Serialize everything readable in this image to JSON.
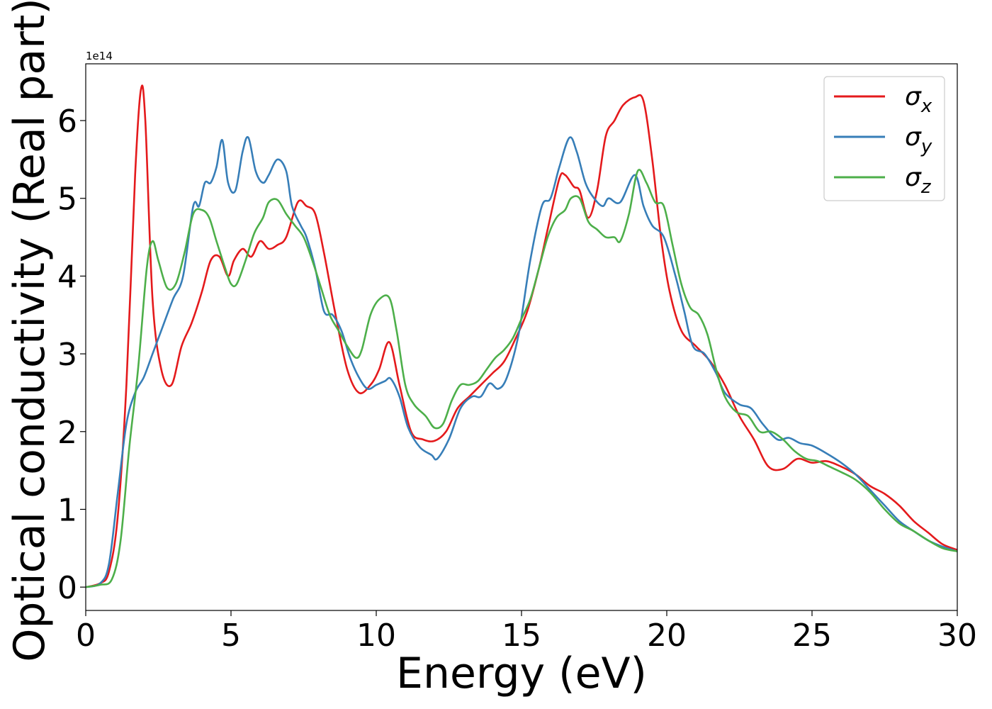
{
  "chart_data": {
    "type": "line",
    "title": "",
    "xlabel": "Energy (eV)",
    "ylabel": "Optical conductivity (Real part)",
    "y_offset_text": "1e14",
    "xlim": [
      0,
      30
    ],
    "ylim": [
      -0.3,
      6.73
    ],
    "xticks": [
      0,
      5,
      10,
      15,
      20,
      25,
      30
    ],
    "xtick_labels": [
      "0",
      "5",
      "10",
      "15",
      "20",
      "25",
      "30"
    ],
    "yticks": [
      0,
      1,
      2,
      3,
      4,
      5,
      6
    ],
    "ytick_labels": [
      "0",
      "1",
      "2",
      "3",
      "4",
      "5",
      "6"
    ],
    "grid": false,
    "legend": "upper right",
    "series": [
      {
        "name": "σx",
        "symbol": "σ",
        "subscript": "x",
        "color": "#e41a1c",
        "x": [
          0,
          0.5,
          0.8,
          1.1,
          1.4,
          1.7,
          1.9,
          2.05,
          2.3,
          2.6,
          2.95,
          3.3,
          3.65,
          4.0,
          4.3,
          4.6,
          4.9,
          5.1,
          5.4,
          5.7,
          6.0,
          6.3,
          6.6,
          6.9,
          7.3,
          7.6,
          7.9,
          8.2,
          8.6,
          9.0,
          9.4,
          9.8,
          10.1,
          10.45,
          10.8,
          11.2,
          11.6,
          12.0,
          12.4,
          12.8,
          13.2,
          13.6,
          14.0,
          14.4,
          14.8,
          15.2,
          15.6,
          15.9,
          16.3,
          16.5,
          16.8,
          17.0,
          17.3,
          17.6,
          17.9,
          18.2,
          18.5,
          18.9,
          19.2,
          19.5,
          19.8,
          20.1,
          20.5,
          21.0,
          21.5,
          22.0,
          22.5,
          23.0,
          23.5,
          24.0,
          24.5,
          25.0,
          25.5,
          26.0,
          26.5,
          27.0,
          27.5,
          28.0,
          28.5,
          29.0,
          29.5,
          30.0
        ],
        "y": [
          0.0,
          0.05,
          0.2,
          0.9,
          2.6,
          5.3,
          6.4,
          6.0,
          3.7,
          2.8,
          2.6,
          3.1,
          3.4,
          3.8,
          4.2,
          4.25,
          4.0,
          4.2,
          4.35,
          4.25,
          4.45,
          4.35,
          4.4,
          4.5,
          4.95,
          4.9,
          4.8,
          4.3,
          3.5,
          2.8,
          2.5,
          2.6,
          2.8,
          3.15,
          2.6,
          2.0,
          1.9,
          1.88,
          2.0,
          2.3,
          2.45,
          2.6,
          2.75,
          2.9,
          3.2,
          3.55,
          4.1,
          4.6,
          5.25,
          5.3,
          5.15,
          5.1,
          4.75,
          5.1,
          5.8,
          6.0,
          6.2,
          6.3,
          6.25,
          5.5,
          4.5,
          3.8,
          3.3,
          3.1,
          2.9,
          2.6,
          2.2,
          1.9,
          1.55,
          1.52,
          1.65,
          1.6,
          1.62,
          1.55,
          1.45,
          1.3,
          1.2,
          1.05,
          0.85,
          0.7,
          0.55,
          0.48
        ]
      },
      {
        "name": "σy",
        "symbol": "σ",
        "subscript": "y",
        "color": "#377eb8",
        "x": [
          0,
          0.5,
          0.8,
          1.1,
          1.4,
          1.7,
          2.0,
          2.3,
          2.6,
          3.0,
          3.35,
          3.7,
          3.9,
          4.1,
          4.3,
          4.5,
          4.7,
          4.9,
          5.15,
          5.4,
          5.6,
          5.85,
          6.1,
          6.3,
          6.6,
          6.9,
          7.1,
          7.4,
          7.6,
          7.9,
          8.2,
          8.5,
          8.8,
          9.1,
          9.4,
          9.7,
          10.0,
          10.3,
          10.5,
          10.8,
          11.1,
          11.5,
          11.9,
          12.1,
          12.5,
          12.9,
          13.3,
          13.6,
          13.9,
          14.2,
          14.5,
          14.9,
          15.3,
          15.7,
          16.0,
          16.3,
          16.65,
          16.9,
          17.2,
          17.5,
          17.8,
          18.0,
          18.4,
          18.9,
          19.2,
          19.5,
          19.9,
          20.3,
          20.6,
          20.9,
          21.3,
          21.7,
          22.0,
          22.5,
          22.9,
          23.3,
          23.8,
          24.2,
          24.6,
          25.0,
          25.5,
          26.0,
          26.5,
          27.0,
          27.5,
          28.0,
          28.5,
          29.0,
          29.5,
          30.0
        ],
        "y": [
          0.0,
          0.05,
          0.3,
          1.2,
          2.1,
          2.5,
          2.7,
          3.0,
          3.3,
          3.7,
          4.0,
          4.9,
          4.9,
          5.2,
          5.2,
          5.4,
          5.75,
          5.2,
          5.1,
          5.6,
          5.78,
          5.35,
          5.2,
          5.3,
          5.5,
          5.35,
          4.9,
          4.65,
          4.5,
          4.1,
          3.55,
          3.5,
          3.3,
          2.95,
          2.7,
          2.55,
          2.6,
          2.65,
          2.68,
          2.45,
          2.05,
          1.8,
          1.7,
          1.65,
          1.9,
          2.3,
          2.45,
          2.45,
          2.62,
          2.55,
          2.7,
          3.25,
          4.2,
          4.9,
          5.0,
          5.4,
          5.78,
          5.6,
          5.2,
          5.0,
          4.9,
          5.0,
          4.95,
          5.3,
          4.9,
          4.65,
          4.5,
          4.0,
          3.55,
          3.1,
          3.0,
          2.75,
          2.5,
          2.35,
          2.3,
          2.1,
          1.9,
          1.92,
          1.85,
          1.82,
          1.72,
          1.6,
          1.45,
          1.25,
          1.05,
          0.85,
          0.72,
          0.6,
          0.52,
          0.46
        ]
      },
      {
        "name": "σz",
        "symbol": "σ",
        "subscript": "z",
        "color": "#4daf4a",
        "x": [
          0,
          0.5,
          0.9,
          1.2,
          1.5,
          1.8,
          2.1,
          2.3,
          2.5,
          2.8,
          3.1,
          3.4,
          3.7,
          4.0,
          4.25,
          4.5,
          4.8,
          5.0,
          5.2,
          5.5,
          5.8,
          6.1,
          6.3,
          6.6,
          6.9,
          7.2,
          7.5,
          7.8,
          8.1,
          8.4,
          8.7,
          9.0,
          9.3,
          9.5,
          9.8,
          10.1,
          10.45,
          10.7,
          11.0,
          11.3,
          11.7,
          12.0,
          12.3,
          12.6,
          12.9,
          13.2,
          13.5,
          13.8,
          14.1,
          14.4,
          14.7,
          15.0,
          15.3,
          15.6,
          15.9,
          16.2,
          16.5,
          16.7,
          17.0,
          17.3,
          17.6,
          17.9,
          18.2,
          18.4,
          18.7,
          19.0,
          19.3,
          19.6,
          19.9,
          20.2,
          20.5,
          20.8,
          21.1,
          21.4,
          21.7,
          22.0,
          22.4,
          22.8,
          23.2,
          23.6,
          24.0,
          24.4,
          24.8,
          25.2,
          25.6,
          26.0,
          26.5,
          27.0,
          27.5,
          28.0,
          28.5,
          29.0,
          29.5,
          30.0
        ],
        "y": [
          0.0,
          0.03,
          0.1,
          0.6,
          1.8,
          2.8,
          4.1,
          4.45,
          4.2,
          3.85,
          3.9,
          4.3,
          4.8,
          4.85,
          4.75,
          4.45,
          4.1,
          3.9,
          3.9,
          4.2,
          4.55,
          4.75,
          4.95,
          4.98,
          4.8,
          4.65,
          4.5,
          4.2,
          3.85,
          3.5,
          3.3,
          3.1,
          2.95,
          3.05,
          3.5,
          3.7,
          3.72,
          3.3,
          2.6,
          2.35,
          2.2,
          2.05,
          2.1,
          2.4,
          2.6,
          2.6,
          2.65,
          2.8,
          2.95,
          3.05,
          3.2,
          3.45,
          3.7,
          4.1,
          4.5,
          4.75,
          4.85,
          5.0,
          5.0,
          4.7,
          4.6,
          4.5,
          4.5,
          4.45,
          4.8,
          5.35,
          5.2,
          4.95,
          4.9,
          4.4,
          3.9,
          3.6,
          3.5,
          3.25,
          2.8,
          2.45,
          2.25,
          2.2,
          2.0,
          2.0,
          1.9,
          1.75,
          1.65,
          1.62,
          1.55,
          1.48,
          1.38,
          1.22,
          1.0,
          0.82,
          0.72,
          0.6,
          0.5,
          0.46
        ]
      }
    ]
  }
}
